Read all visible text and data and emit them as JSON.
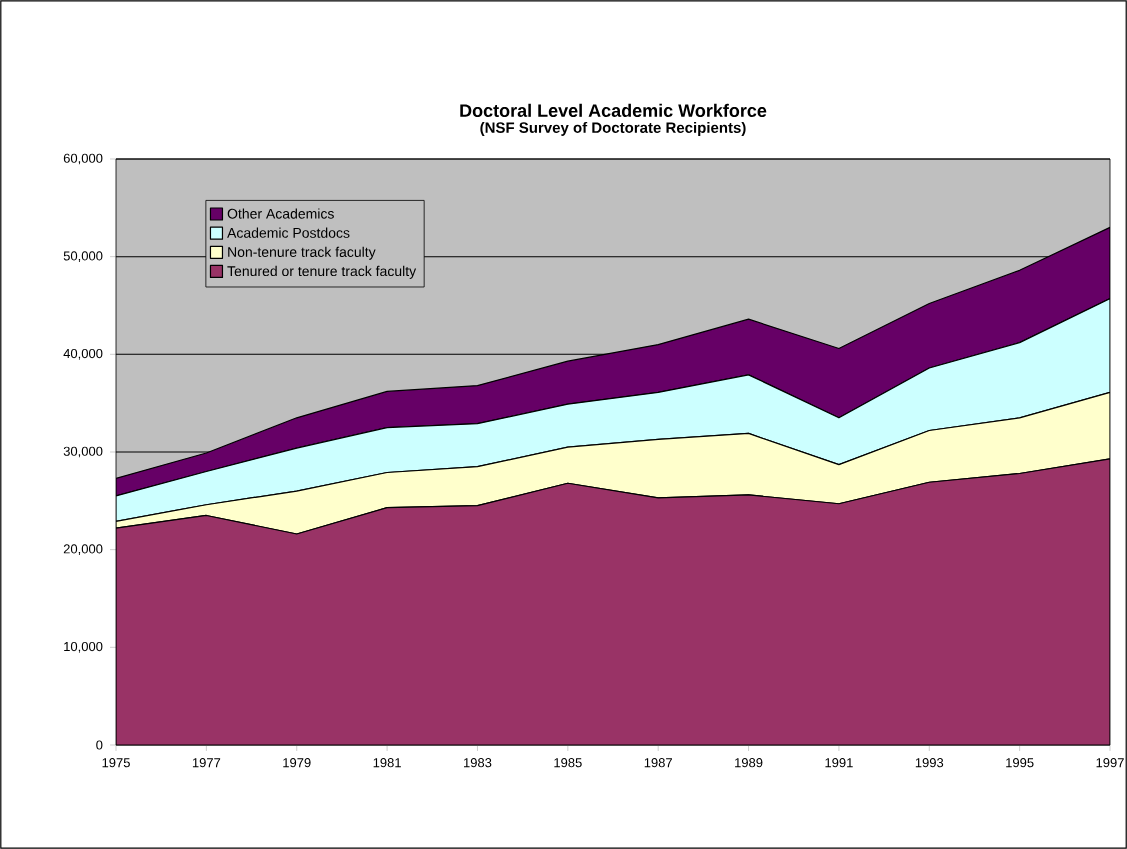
{
  "chart_data": {
    "type": "area",
    "stacked": true,
    "title": "Doctoral Level Academic Workforce",
    "subtitle": "(NSF Survey of Doctorate Recipients)",
    "x": [
      1975,
      1977,
      1979,
      1981,
      1983,
      1985,
      1987,
      1989,
      1991,
      1993,
      1995,
      1997
    ],
    "series": [
      {
        "name": "Tenured or tenure track faculty",
        "color": "#993366",
        "values": [
          22200,
          23500,
          21600,
          24300,
          24500,
          26800,
          25300,
          25600,
          24700,
          26900,
          27800,
          29300
        ]
      },
      {
        "name": "Non-tenure track faculty",
        "color": "#ffffcc",
        "values": [
          700,
          1100,
          4400,
          3600,
          4000,
          3700,
          6000,
          6300,
          4000,
          5300,
          5700,
          6800
        ]
      },
      {
        "name": "Academic Postdocs",
        "color": "#ccffff",
        "values": [
          2600,
          3400,
          4400,
          4600,
          4400,
          4400,
          4800,
          6000,
          4800,
          6400,
          7700,
          9600
        ]
      },
      {
        "name": "Other Academics",
        "color": "#660066",
        "values": [
          1800,
          1900,
          3100,
          3700,
          3900,
          4400,
          4900,
          5700,
          7100,
          6600,
          7400,
          7300
        ]
      }
    ],
    "xlim": [
      1975,
      1997
    ],
    "xticks": [
      1975,
      1977,
      1979,
      1981,
      1983,
      1985,
      1987,
      1989,
      1991,
      1993,
      1995,
      1997
    ],
    "ylim": [
      0,
      60000
    ],
    "yticks": [
      {
        "value": 0,
        "label": "0"
      },
      {
        "value": 10000,
        "label": "10,000"
      },
      {
        "value": 20000,
        "label": "20,000"
      },
      {
        "value": 30000,
        "label": "30,000"
      },
      {
        "value": 40000,
        "label": "40,000"
      },
      {
        "value": 50000,
        "label": "50,000"
      },
      {
        "value": 60000,
        "label": "60,000"
      }
    ],
    "grid": "y",
    "legend": "top left",
    "marker": "none"
  }
}
